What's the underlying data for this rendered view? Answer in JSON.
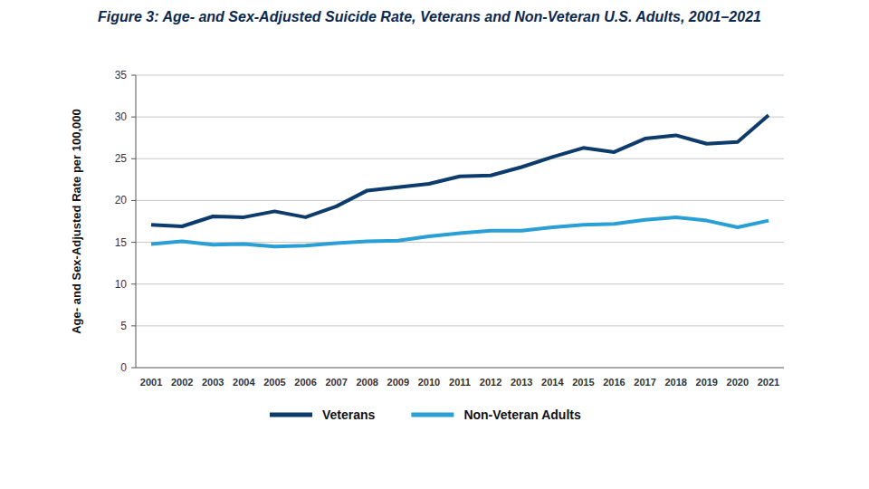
{
  "chart_data": {
    "type": "line",
    "title": "Figure 3: Age- and Sex-Adjusted Suicide Rate, Veterans and Non-Veteran U.S. Adults, 2001–2021",
    "ylabel": "Age- and Sex-Adjusted Rate per 100,000",
    "categories": [
      "2001",
      "2002",
      "2003",
      "2004",
      "2005",
      "2006",
      "2007",
      "2008",
      "2009",
      "2010",
      "2011",
      "2012",
      "2013",
      "2014",
      "2015",
      "2016",
      "2017",
      "2018",
      "2019",
      "2020",
      "2021"
    ],
    "series": [
      {
        "name": "Veterans",
        "color": "#0d3b6b",
        "values": [
          17.1,
          16.9,
          18.1,
          18.0,
          18.7,
          18.0,
          19.3,
          21.2,
          21.6,
          22.0,
          22.9,
          23.0,
          24.0,
          25.2,
          26.3,
          25.8,
          27.4,
          27.8,
          26.8,
          27.0,
          30.2
        ]
      },
      {
        "name": "Non-Veteran Adults",
        "color": "#2a9fd6",
        "values": [
          14.8,
          15.1,
          14.7,
          14.8,
          14.5,
          14.6,
          14.9,
          15.1,
          15.2,
          15.7,
          16.1,
          16.4,
          16.4,
          16.8,
          17.1,
          17.2,
          17.7,
          18.0,
          17.6,
          16.8,
          17.6
        ]
      }
    ],
    "ylim": [
      0,
      35
    ],
    "yticks": [
      0,
      5,
      10,
      15,
      20,
      25,
      30,
      35
    ],
    "grid": true,
    "legend": "bottom"
  }
}
